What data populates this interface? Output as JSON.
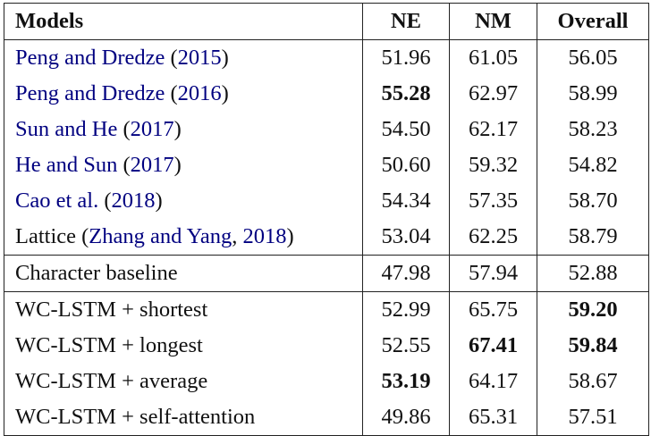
{
  "table": {
    "headers": [
      "Models",
      "NE",
      "NM",
      "Overall"
    ],
    "link_color": "#000080",
    "groups": [
      [
        {
          "model": [
            {
              "t": "Peng and Dredze",
              "cite": true
            },
            {
              "t": " (",
              "cite": false
            },
            {
              "t": "2015",
              "cite": true
            },
            {
              "t": ")",
              "cite": false
            }
          ],
          "values": [
            "51.96",
            "61.05",
            "56.05"
          ],
          "bold": [
            false,
            false,
            false
          ]
        },
        {
          "model": [
            {
              "t": "Peng and Dredze",
              "cite": true
            },
            {
              "t": " (",
              "cite": false
            },
            {
              "t": "2016",
              "cite": true
            },
            {
              "t": ")",
              "cite": false
            }
          ],
          "values": [
            "55.28",
            "62.97",
            "58.99"
          ],
          "bold": [
            true,
            false,
            false
          ]
        },
        {
          "model": [
            {
              "t": "Sun and He",
              "cite": true
            },
            {
              "t": " (",
              "cite": false
            },
            {
              "t": "2017",
              "cite": true
            },
            {
              "t": ")",
              "cite": false
            }
          ],
          "values": [
            "54.50",
            "62.17",
            "58.23"
          ],
          "bold": [
            false,
            false,
            false
          ]
        },
        {
          "model": [
            {
              "t": "He and Sun",
              "cite": true
            },
            {
              "t": " (",
              "cite": false
            },
            {
              "t": "2017",
              "cite": true
            },
            {
              "t": ")",
              "cite": false
            }
          ],
          "values": [
            "50.60",
            "59.32",
            "54.82"
          ],
          "bold": [
            false,
            false,
            false
          ]
        },
        {
          "model": [
            {
              "t": "Cao et al.",
              "cite": true
            },
            {
              "t": " (",
              "cite": false
            },
            {
              "t": "2018",
              "cite": true
            },
            {
              "t": ")",
              "cite": false
            }
          ],
          "values": [
            "54.34",
            "57.35",
            "58.70"
          ],
          "bold": [
            false,
            false,
            false
          ]
        },
        {
          "model": [
            {
              "t": "Lattice (",
              "cite": false
            },
            {
              "t": "Zhang and Yang",
              "cite": true
            },
            {
              "t": ", ",
              "cite": false
            },
            {
              "t": "2018",
              "cite": true
            },
            {
              "t": ")",
              "cite": false
            }
          ],
          "values": [
            "53.04",
            "62.25",
            "58.79"
          ],
          "bold": [
            false,
            false,
            false
          ]
        }
      ],
      [
        {
          "model": [
            {
              "t": "Character baseline",
              "cite": false
            }
          ],
          "values": [
            "47.98",
            "57.94",
            "52.88"
          ],
          "bold": [
            false,
            false,
            false
          ]
        }
      ],
      [
        {
          "model": [
            {
              "t": "WC-LSTM + shortest",
              "cite": false
            }
          ],
          "values": [
            "52.99",
            "65.75",
            "59.20"
          ],
          "bold": [
            false,
            false,
            true
          ]
        },
        {
          "model": [
            {
              "t": "WC-LSTM + longest",
              "cite": false
            }
          ],
          "values": [
            "52.55",
            "67.41",
            "59.84"
          ],
          "bold": [
            false,
            true,
            true
          ]
        },
        {
          "model": [
            {
              "t": "WC-LSTM + average",
              "cite": false
            }
          ],
          "values": [
            "53.19",
            "64.17",
            "58.67"
          ],
          "bold": [
            true,
            false,
            false
          ]
        },
        {
          "model": [
            {
              "t": "WC-LSTM + self-attention",
              "cite": false
            }
          ],
          "values": [
            "49.86",
            "65.31",
            "57.51"
          ],
          "bold": [
            false,
            false,
            false
          ]
        }
      ]
    ]
  }
}
